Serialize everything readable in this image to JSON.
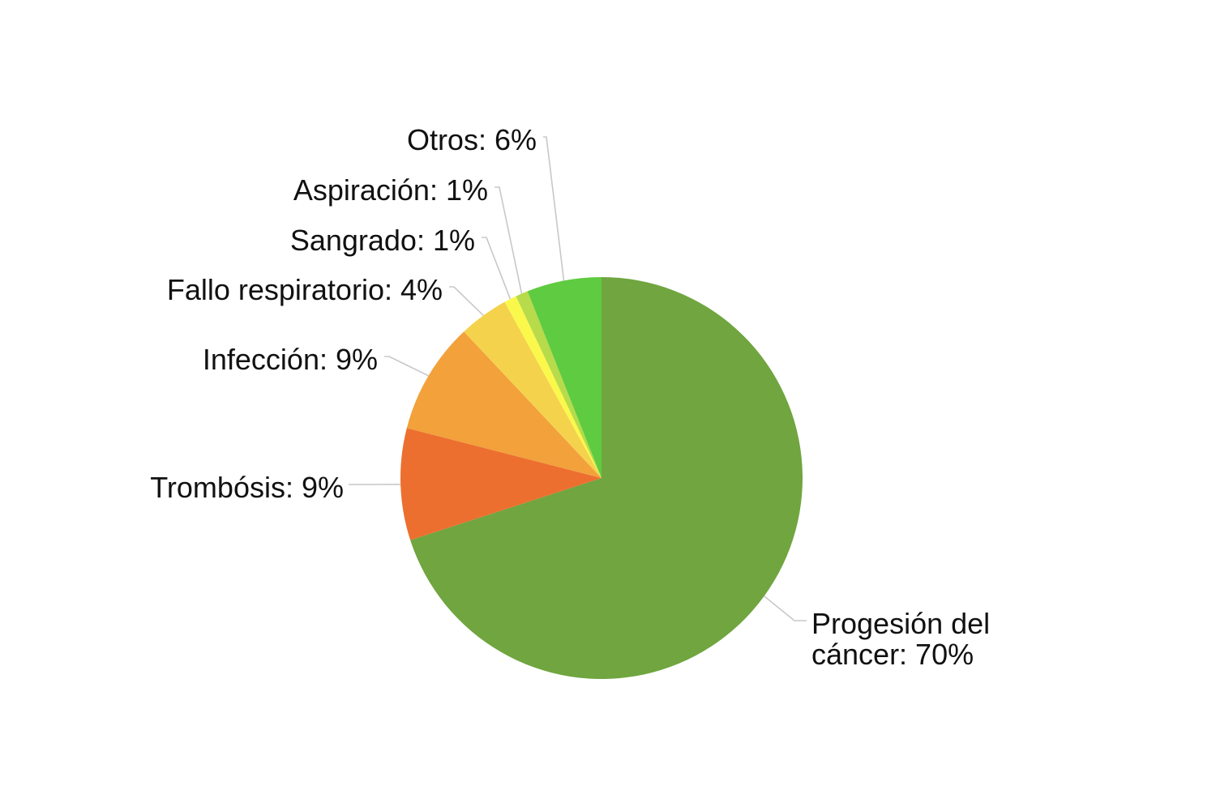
{
  "chart_data": {
    "type": "pie",
    "title": "",
    "start": "top",
    "direction": "clockwise",
    "slices": [
      {
        "label": "Progesión del cáncer",
        "value": 70,
        "display": [
          "Progesión del",
          "cáncer: 70%"
        ],
        "color": "#70a53f"
      },
      {
        "label": "Trombósis",
        "value": 9,
        "display": [
          "Trombósis: 9%"
        ],
        "color": "#ec6f2f"
      },
      {
        "label": "Infección",
        "value": 9,
        "display": [
          "Infección: 9%"
        ],
        "color": "#f2a13b"
      },
      {
        "label": "Fallo respiratorio",
        "value": 4,
        "display": [
          "Fallo respiratorio: 4%"
        ],
        "color": "#f5d24c"
      },
      {
        "label": "Sangrado",
        "value": 1,
        "display": [
          "Sangrado: 1%"
        ],
        "color": "#fbf84c"
      },
      {
        "label": "Aspiración",
        "value": 1,
        "display": [
          "Aspiración: 1%"
        ],
        "color": "#b7db4a"
      },
      {
        "label": "Otros",
        "value": 6,
        "display": [
          "Otros: 6%"
        ],
        "color": "#5fcb40"
      }
    ]
  }
}
